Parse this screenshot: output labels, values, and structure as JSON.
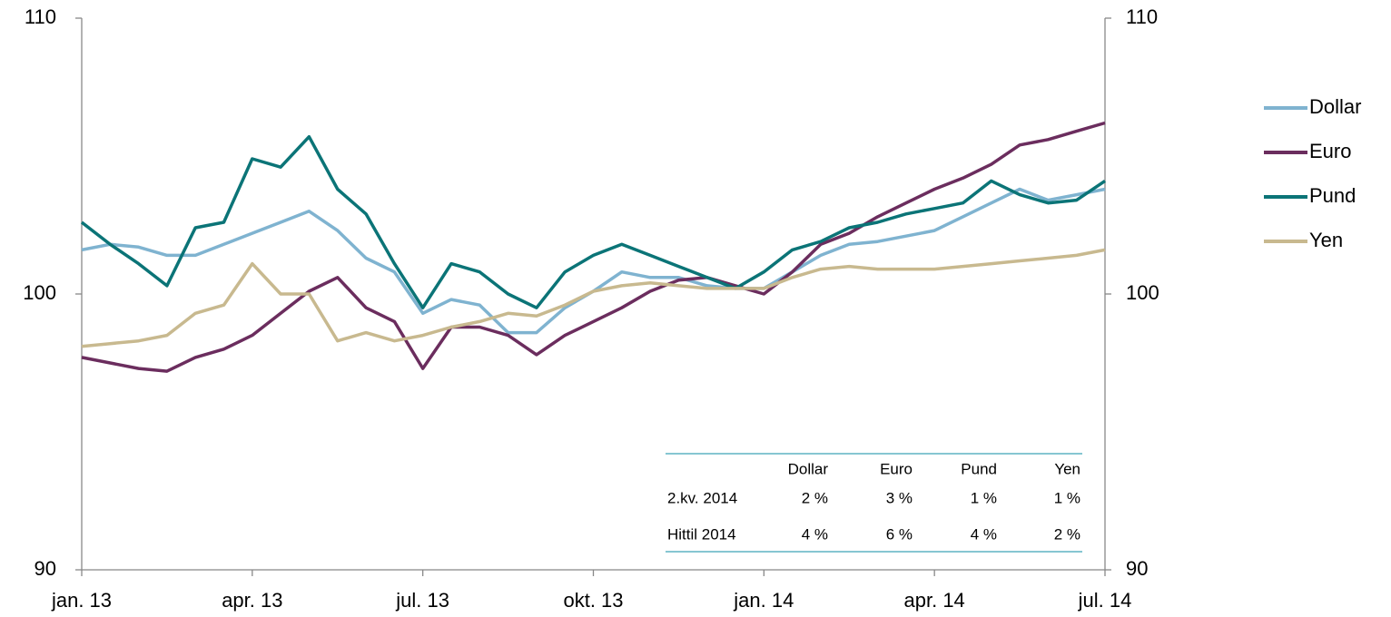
{
  "chart_data": {
    "type": "line",
    "x": [
      0,
      0.5,
      1,
      1.5,
      2,
      2.5,
      3,
      3.5,
      4,
      4.5,
      5,
      5.5,
      6,
      6.5,
      7,
      7.5,
      8,
      8.5,
      9,
      9.5,
      10,
      10.5,
      11,
      11.5,
      12,
      12.5,
      13,
      13.5,
      14,
      14.5,
      15,
      15.5,
      16,
      16.5,
      17,
      17.5,
      18
    ],
    "xlim": [
      0,
      18
    ],
    "xticks": [
      {
        "value": 0,
        "label": "jan. 13"
      },
      {
        "value": 3,
        "label": "apr. 13"
      },
      {
        "value": 6,
        "label": "jul. 13"
      },
      {
        "value": 9,
        "label": "okt. 13"
      },
      {
        "value": 12,
        "label": "jan. 14"
      },
      {
        "value": 15,
        "label": "apr. 14"
      },
      {
        "value": 18,
        "label": "jul. 14"
      }
    ],
    "ylim": [
      90,
      110
    ],
    "yticks": [
      90,
      100,
      110
    ],
    "y2lim": [
      90,
      110
    ],
    "y2ticks": [
      90,
      100,
      110
    ],
    "series": [
      {
        "name": "Dollar",
        "color": "#7fb3d0",
        "values": [
          101.6,
          101.8,
          101.7,
          101.4,
          101.4,
          101.8,
          102.2,
          102.6,
          103.0,
          102.3,
          101.3,
          100.8,
          99.3,
          99.8,
          99.6,
          98.6,
          98.6,
          99.5,
          100.1,
          100.8,
          100.6,
          100.6,
          100.3,
          100.2,
          100.2,
          100.8,
          101.4,
          101.8,
          101.9,
          102.1,
          102.3,
          102.8,
          103.3,
          103.8,
          103.4,
          103.6,
          103.8
        ]
      },
      {
        "name": "Euro",
        "color": "#6b2d5e",
        "values": [
          97.7,
          97.5,
          97.3,
          97.2,
          97.7,
          98.0,
          98.5,
          99.3,
          100.1,
          100.6,
          99.5,
          99.0,
          97.3,
          98.8,
          98.8,
          98.5,
          97.8,
          98.5,
          99.0,
          99.5,
          100.1,
          100.5,
          100.6,
          100.3,
          100.0,
          100.8,
          101.8,
          102.2,
          102.8,
          103.3,
          103.8,
          104.2,
          104.7,
          105.4,
          105.6,
          105.9,
          106.2
        ]
      },
      {
        "name": "Pund",
        "color": "#0b7477",
        "values": [
          102.6,
          101.8,
          101.1,
          100.3,
          102.4,
          102.6,
          104.9,
          104.6,
          105.7,
          103.8,
          102.9,
          101.1,
          99.5,
          101.1,
          100.8,
          100.0,
          99.5,
          100.8,
          101.4,
          101.8,
          101.4,
          101.0,
          100.6,
          100.2,
          100.8,
          101.6,
          101.9,
          102.4,
          102.6,
          102.9,
          103.1,
          103.3,
          104.1,
          103.6,
          103.3,
          103.4,
          104.1
        ]
      },
      {
        "name": "Yen",
        "color": "#c8b98f",
        "values": [
          98.1,
          98.2,
          98.3,
          98.5,
          99.3,
          99.6,
          101.1,
          100.0,
          100.0,
          98.3,
          98.6,
          98.3,
          98.5,
          98.8,
          99.0,
          99.3,
          99.2,
          99.6,
          100.1,
          100.3,
          100.4,
          100.3,
          100.2,
          100.2,
          100.2,
          100.6,
          100.9,
          101.0,
          100.9,
          100.9,
          100.9,
          101.0,
          101.1,
          101.2,
          101.3,
          101.4,
          101.6
        ]
      }
    ],
    "legend": "right",
    "table": {
      "columns": [
        "Dollar",
        "Euro",
        "Pund",
        "Yen"
      ],
      "rows": [
        {
          "label": "2.kv. 2014",
          "cells": [
            "2 %",
            "3 %",
            "1 %",
            "1 %"
          ]
        },
        {
          "label": "Hittil 2014",
          "cells": [
            "4 %",
            "6 %",
            "4 %",
            "2 %"
          ]
        }
      ]
    }
  }
}
